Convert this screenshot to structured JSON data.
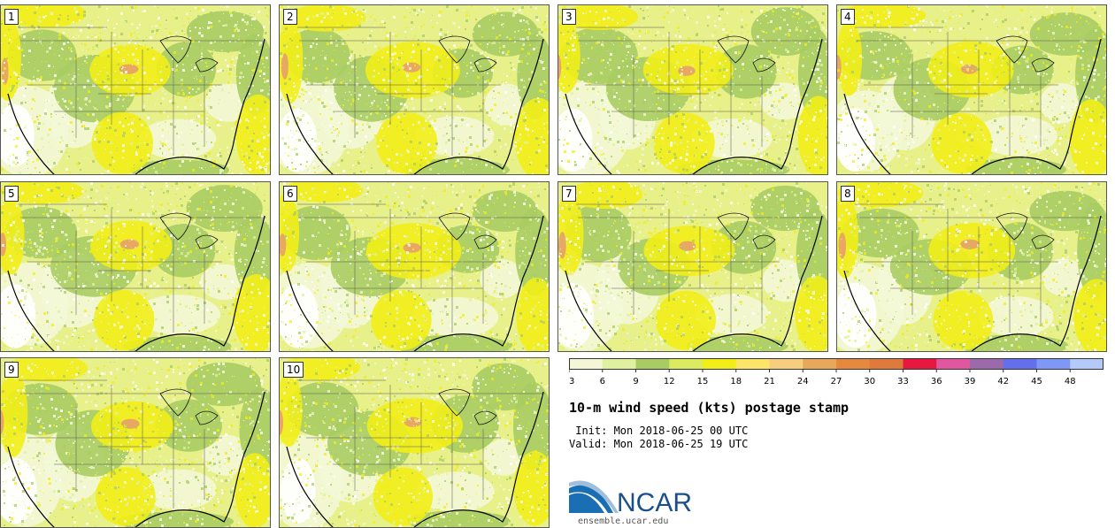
{
  "panels": [
    "1",
    "2",
    "3",
    "4",
    "5",
    "6",
    "7",
    "8",
    "9",
    "10"
  ],
  "colorbar": {
    "ticks": [
      "3",
      "6",
      "9",
      "12",
      "15",
      "18",
      "21",
      "24",
      "27",
      "30",
      "33",
      "36",
      "39",
      "42",
      "45",
      "48"
    ],
    "colors": [
      "#f3f7d6",
      "#dff0a1",
      "#a8cc63",
      "#dbea60",
      "#f2ee18",
      "#fbe66a",
      "#f7cd80",
      "#e8a85c",
      "#e4893d",
      "#dd7a3c",
      "#e8173f",
      "#e0579f",
      "#9b6aaa",
      "#6270ec",
      "#7f98f6",
      "#b4cbf9"
    ]
  },
  "title": "10-m wind speed (kts) postage stamp",
  "init": " Init: Mon 2018-06-25 00 UTC",
  "valid": "Valid: Mon 2018-06-25 19 UTC",
  "logo": {
    "text": "NCAR",
    "subtext": "ensemble.ucar.edu",
    "brand_color": "#1a6fb4"
  },
  "map_colors": {
    "calm": "#ffffff",
    "light": "#f3f7d6",
    "pale": "#dff0a1",
    "green": "#a8cc63",
    "yellow": "#f2ee18",
    "orange": "#e7a06b"
  }
}
